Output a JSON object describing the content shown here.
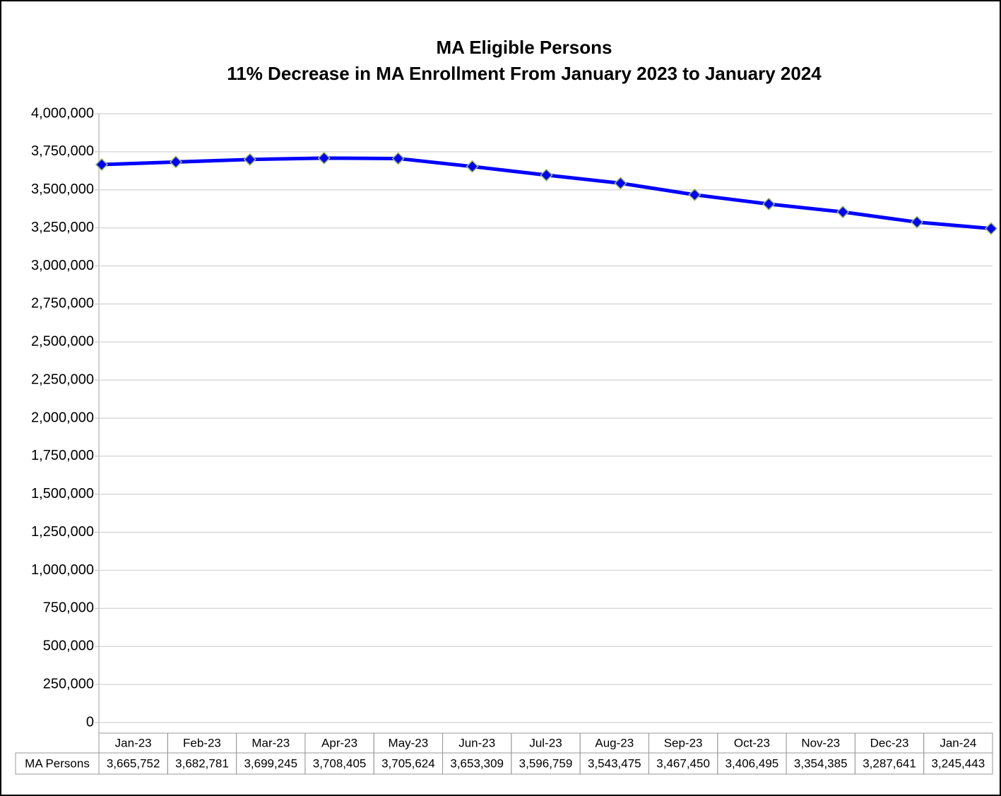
{
  "chart_data": {
    "type": "line",
    "title": "MA Eligible Persons",
    "subtitle": "11% Decrease in MA Enrollment From January 2023 to January 2024",
    "categories": [
      "Jan-23",
      "Feb-23",
      "Mar-23",
      "Apr-23",
      "May-23",
      "Jun-23",
      "Jul-23",
      "Aug-23",
      "Sep-23",
      "Oct-23",
      "Nov-23",
      "Dec-23",
      "Jan-24"
    ],
    "series": [
      {
        "name": "MA Persons",
        "color": "#0000ff",
        "marker_stroke": "#9bbb59",
        "values": [
          3665752,
          3682781,
          3699245,
          3708405,
          3705624,
          3653309,
          3596759,
          3543475,
          3467450,
          3406495,
          3354385,
          3287641,
          3245443
        ],
        "value_labels": [
          "3,665,752",
          "3,682,781",
          "3,699,245",
          "3,708,405",
          "3,705,624",
          "3,653,309",
          "3,596,759",
          "3,543,475",
          "3,467,450",
          "3,406,495",
          "3,354,385",
          "3,287,641",
          "3,245,443"
        ]
      }
    ],
    "ylim": [
      0,
      4000000
    ],
    "yticks": [
      0,
      {
        "value": 250000,
        "label": "250,000"
      },
      {
        "value": 500000,
        "label": "500,000"
      },
      {
        "value": 750000,
        "label": "750,000"
      },
      {
        "value": 1000000,
        "label": "1,000,000"
      },
      {
        "value": 1250000,
        "label": "1,250,000"
      },
      {
        "value": 1500000,
        "label": "1,500,000"
      },
      {
        "value": 1750000,
        "label": "1,750,000"
      },
      {
        "value": 2000000,
        "label": "2,000,000"
      },
      {
        "value": 2250000,
        "label": "2,250,000"
      },
      {
        "value": 2500000,
        "label": "2,500,000"
      },
      {
        "value": 2750000,
        "label": "2,750,000"
      },
      {
        "value": 3000000,
        "label": "3,000,000"
      },
      {
        "value": 3250000,
        "label": "3,250,000"
      },
      {
        "value": 3500000,
        "label": "3,500,000"
      },
      {
        "value": 3750000,
        "label": "3,750,000"
      },
      {
        "value": 4000000,
        "label": "4,000,000"
      }
    ],
    "grid": true
  }
}
